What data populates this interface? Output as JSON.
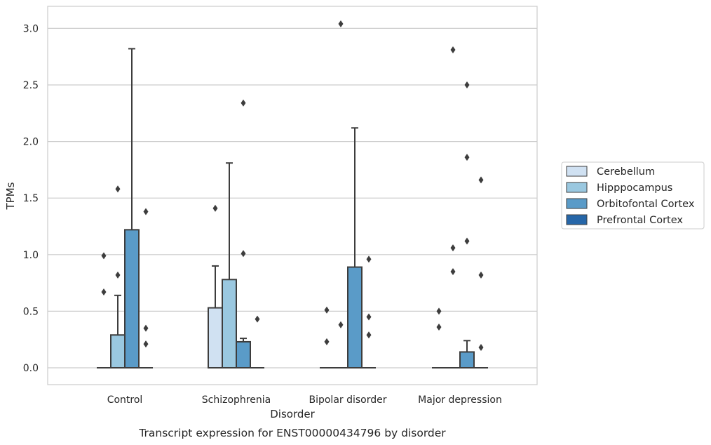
{
  "chart_data": {
    "type": "box",
    "title": "",
    "caption": "Transcript expression for ENST00000434796 by disorder",
    "xlabel": "Disorder",
    "ylabel": "TPMs",
    "ylim": [
      -0.15,
      3.2
    ],
    "yticks": [
      "0.0",
      "0.5",
      "1.0",
      "1.5",
      "2.0",
      "2.5",
      "3.0"
    ],
    "grid": "horizontal",
    "legend_position": "right",
    "categories": [
      "Control",
      "Schizophrenia",
      "Bipolar disorder",
      "Major depression"
    ],
    "series": [
      {
        "name": "Cerebellum",
        "color": "#d0e1f2",
        "boxes": [
          {
            "q1": 0,
            "median": 0,
            "q3": 0,
            "whisker_low": 0,
            "whisker_high": 0,
            "outliers": [
              0.67,
              0.99
            ]
          },
          {
            "q1": 0,
            "median": 0,
            "q3": 0.53,
            "whisker_low": 0,
            "whisker_high": 0.9,
            "outliers": [
              1.41
            ]
          },
          {
            "q1": 0,
            "median": 0,
            "q3": 0,
            "whisker_low": 0,
            "whisker_high": 0,
            "outliers": [
              0.23,
              0.51
            ]
          },
          {
            "q1": 0,
            "median": 0,
            "q3": 0,
            "whisker_low": 0,
            "whisker_high": 0,
            "outliers": [
              0.36,
              0.5
            ]
          }
        ]
      },
      {
        "name": "Hipppocampus",
        "color": "#9ac8e0",
        "boxes": [
          {
            "q1": 0,
            "median": 0,
            "q3": 0.29,
            "whisker_low": 0,
            "whisker_high": 0.64,
            "outliers": [
              0.82,
              1.58
            ]
          },
          {
            "q1": 0,
            "median": 0,
            "q3": 0.78,
            "whisker_low": 0,
            "whisker_high": 1.81,
            "outliers": []
          },
          {
            "q1": 0,
            "median": 0,
            "q3": 0,
            "whisker_low": 0,
            "whisker_high": 0,
            "outliers": [
              0.38,
              3.04
            ]
          },
          {
            "q1": 0,
            "median": 0,
            "q3": 0,
            "whisker_low": 0,
            "whisker_high": 0,
            "outliers": [
              0.85,
              1.06,
              2.81
            ]
          }
        ]
      },
      {
        "name": "Orbitofontal Cortex",
        "color": "#5a9bc8",
        "boxes": [
          {
            "q1": 0,
            "median": 0,
            "q3": 1.22,
            "whisker_low": 0,
            "whisker_high": 2.82,
            "outliers": []
          },
          {
            "q1": 0,
            "median": 0,
            "q3": 0.23,
            "whisker_low": 0,
            "whisker_high": 0.26,
            "outliers": [
              1.01,
              2.34
            ]
          },
          {
            "q1": 0,
            "median": 0,
            "q3": 0.89,
            "whisker_low": 0,
            "whisker_high": 2.12,
            "outliers": []
          },
          {
            "q1": 0,
            "median": 0,
            "q3": 0.14,
            "whisker_low": 0,
            "whisker_high": 0.24,
            "outliers": [
              1.12,
              1.86,
              2.5
            ]
          }
        ]
      },
      {
        "name": "Prefrontal Cortex",
        "color": "#2666a8",
        "boxes": [
          {
            "q1": 0,
            "median": 0,
            "q3": 0,
            "whisker_low": 0,
            "whisker_high": 0,
            "outliers": [
              0.21,
              0.35,
              1.38
            ]
          },
          {
            "q1": 0,
            "median": 0,
            "q3": 0,
            "whisker_low": 0,
            "whisker_high": 0,
            "outliers": [
              0.43
            ]
          },
          {
            "q1": 0,
            "median": 0,
            "q3": 0,
            "whisker_low": 0,
            "whisker_high": 0,
            "outliers": [
              0.29,
              0.45,
              0.96
            ]
          },
          {
            "q1": 0,
            "median": 0,
            "q3": 0,
            "whisker_low": 0,
            "whisker_high": 0,
            "outliers": [
              0.18,
              0.82,
              1.66
            ]
          }
        ]
      }
    ]
  }
}
